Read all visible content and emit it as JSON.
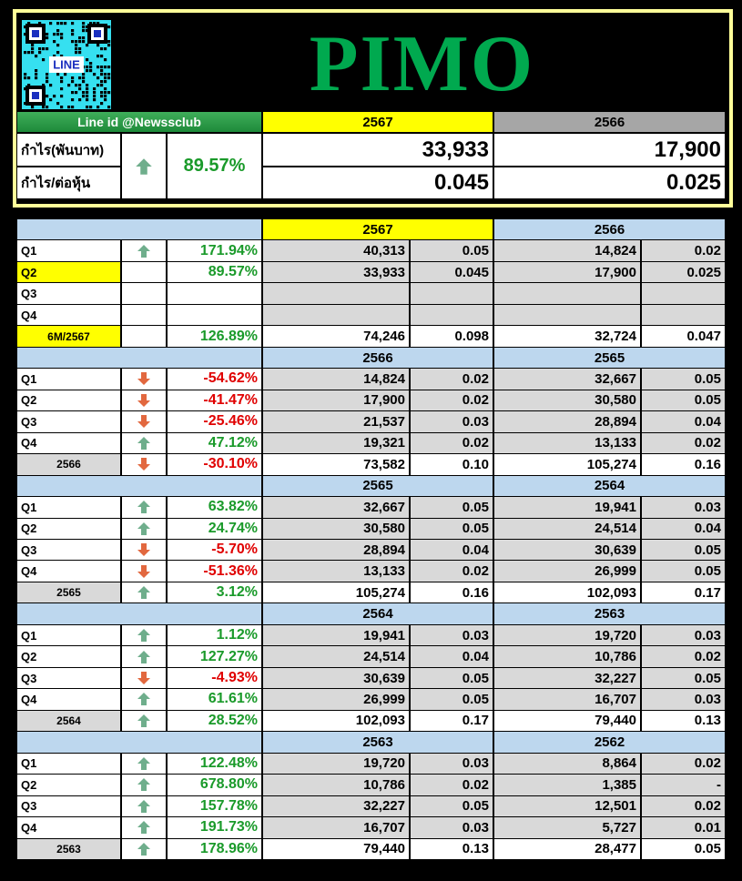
{
  "header": {
    "qr_label": "LINE",
    "title": "PIMO",
    "line_id": "Line id @Newssclub",
    "years": [
      "2567",
      "2566"
    ],
    "rows": [
      {
        "label": "กำไร(พันบาท)",
        "values": [
          "33,933",
          "17,900"
        ]
      },
      {
        "label": "กำไร/ต่อหุ้น",
        "values": [
          "0.045",
          "0.025"
        ]
      }
    ],
    "change": "89.57%",
    "trend": "up"
  },
  "table": {
    "sections": [
      {
        "years": [
          "2567",
          "2566"
        ],
        "highlight": true,
        "rows": [
          {
            "label": "Q1",
            "trend": "up",
            "change": "171.94%",
            "values": [
              "40,313",
              "0.05",
              "14,824",
              "0.02"
            ]
          },
          {
            "label": "Q2",
            "highlight": true,
            "change": "89.57%",
            "values": [
              "33,933",
              "0.045",
              "17,900",
              "0.025"
            ]
          },
          {
            "label": "Q3"
          },
          {
            "label": "Q4"
          },
          {
            "label": "6M/2567",
            "summary": true,
            "highlight": true,
            "change": "126.89%",
            "values": [
              "74,246",
              "0.098",
              "32,724",
              "0.047"
            ]
          }
        ]
      },
      {
        "years": [
          "2566",
          "2565"
        ],
        "rows": [
          {
            "label": "Q1",
            "trend": "down",
            "change": "-54.62%",
            "values": [
              "14,824",
              "0.02",
              "32,667",
              "0.05"
            ]
          },
          {
            "label": "Q2",
            "trend": "down",
            "change": "-41.47%",
            "values": [
              "17,900",
              "0.02",
              "30,580",
              "0.05"
            ]
          },
          {
            "label": "Q3",
            "trend": "down",
            "change": "-25.46%",
            "values": [
              "21,537",
              "0.03",
              "28,894",
              "0.04"
            ]
          },
          {
            "label": "Q4",
            "trend": "up",
            "change": "47.12%",
            "values": [
              "19,321",
              "0.02",
              "13,133",
              "0.02"
            ]
          },
          {
            "label": "2566",
            "summary": true,
            "trend": "down",
            "change": "-30.10%",
            "values": [
              "73,582",
              "0.10",
              "105,274",
              "0.16"
            ]
          }
        ]
      },
      {
        "years": [
          "2565",
          "2564"
        ],
        "rows": [
          {
            "label": "Q1",
            "trend": "up",
            "change": "63.82%",
            "values": [
              "32,667",
              "0.05",
              "19,941",
              "0.03"
            ]
          },
          {
            "label": "Q2",
            "trend": "up",
            "change": "24.74%",
            "values": [
              "30,580",
              "0.05",
              "24,514",
              "0.04"
            ]
          },
          {
            "label": "Q3",
            "trend": "down",
            "change": "-5.70%",
            "values": [
              "28,894",
              "0.04",
              "30,639",
              "0.05"
            ]
          },
          {
            "label": "Q4",
            "trend": "down",
            "change": "-51.36%",
            "values": [
              "13,133",
              "0.02",
              "26,999",
              "0.05"
            ]
          },
          {
            "label": "2565",
            "summary": true,
            "trend": "up",
            "change": "3.12%",
            "values": [
              "105,274",
              "0.16",
              "102,093",
              "0.17"
            ]
          }
        ]
      },
      {
        "years": [
          "2564",
          "2563"
        ],
        "rows": [
          {
            "label": "Q1",
            "trend": "up",
            "change": "1.12%",
            "values": [
              "19,941",
              "0.03",
              "19,720",
              "0.03"
            ]
          },
          {
            "label": "Q2",
            "trend": "up",
            "change": "127.27%",
            "values": [
              "24,514",
              "0.04",
              "10,786",
              "0.02"
            ]
          },
          {
            "label": "Q3",
            "trend": "down",
            "change": "-4.93%",
            "values": [
              "30,639",
              "0.05",
              "32,227",
              "0.05"
            ]
          },
          {
            "label": "Q4",
            "trend": "up",
            "change": "61.61%",
            "values": [
              "26,999",
              "0.05",
              "16,707",
              "0.03"
            ]
          },
          {
            "label": "2564",
            "summary": true,
            "trend": "up",
            "change": "28.52%",
            "values": [
              "102,093",
              "0.17",
              "79,440",
              "0.13"
            ]
          }
        ]
      },
      {
        "years": [
          "2563",
          "2562"
        ],
        "rows": [
          {
            "label": "Q1",
            "trend": "up",
            "change": "122.48%",
            "values": [
              "19,720",
              "0.03",
              "8,864",
              "0.02"
            ]
          },
          {
            "label": "Q2",
            "trend": "up",
            "change": "678.80%",
            "values": [
              "10,786",
              "0.02",
              "1,385",
              "-"
            ]
          },
          {
            "label": "Q3",
            "trend": "up",
            "change": "157.78%",
            "values": [
              "32,227",
              "0.05",
              "12,501",
              "0.02"
            ]
          },
          {
            "label": "Q4",
            "trend": "up",
            "change": "191.73%",
            "values": [
              "16,707",
              "0.03",
              "5,727",
              "0.01"
            ]
          },
          {
            "label": "2563",
            "summary": true,
            "trend": "up",
            "change": "178.96%",
            "values": [
              "79,440",
              "0.13",
              "28,477",
              "0.05"
            ]
          }
        ]
      }
    ]
  }
}
